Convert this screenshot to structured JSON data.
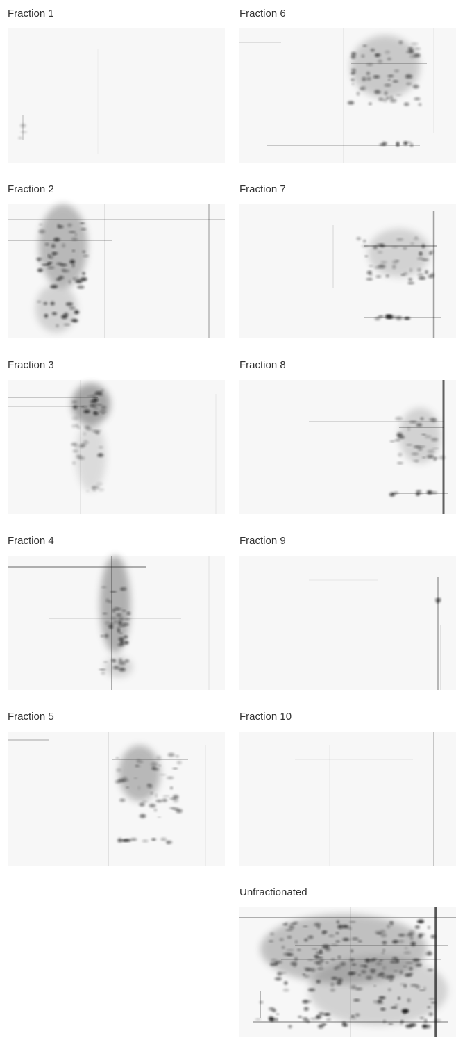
{
  "panels": [
    {
      "label": "Fraction 1"
    },
    {
      "label": "Fraction 2"
    },
    {
      "label": "Fraction 3"
    },
    {
      "label": "Fraction 4"
    },
    {
      "label": "Fraction 5"
    },
    {
      "label": "Fraction 6"
    },
    {
      "label": "Fraction 7"
    },
    {
      "label": "Fraction 8"
    },
    {
      "label": "Fraction 9"
    },
    {
      "label": "Fraction 10"
    },
    {
      "label": "Unfractionated"
    }
  ]
}
